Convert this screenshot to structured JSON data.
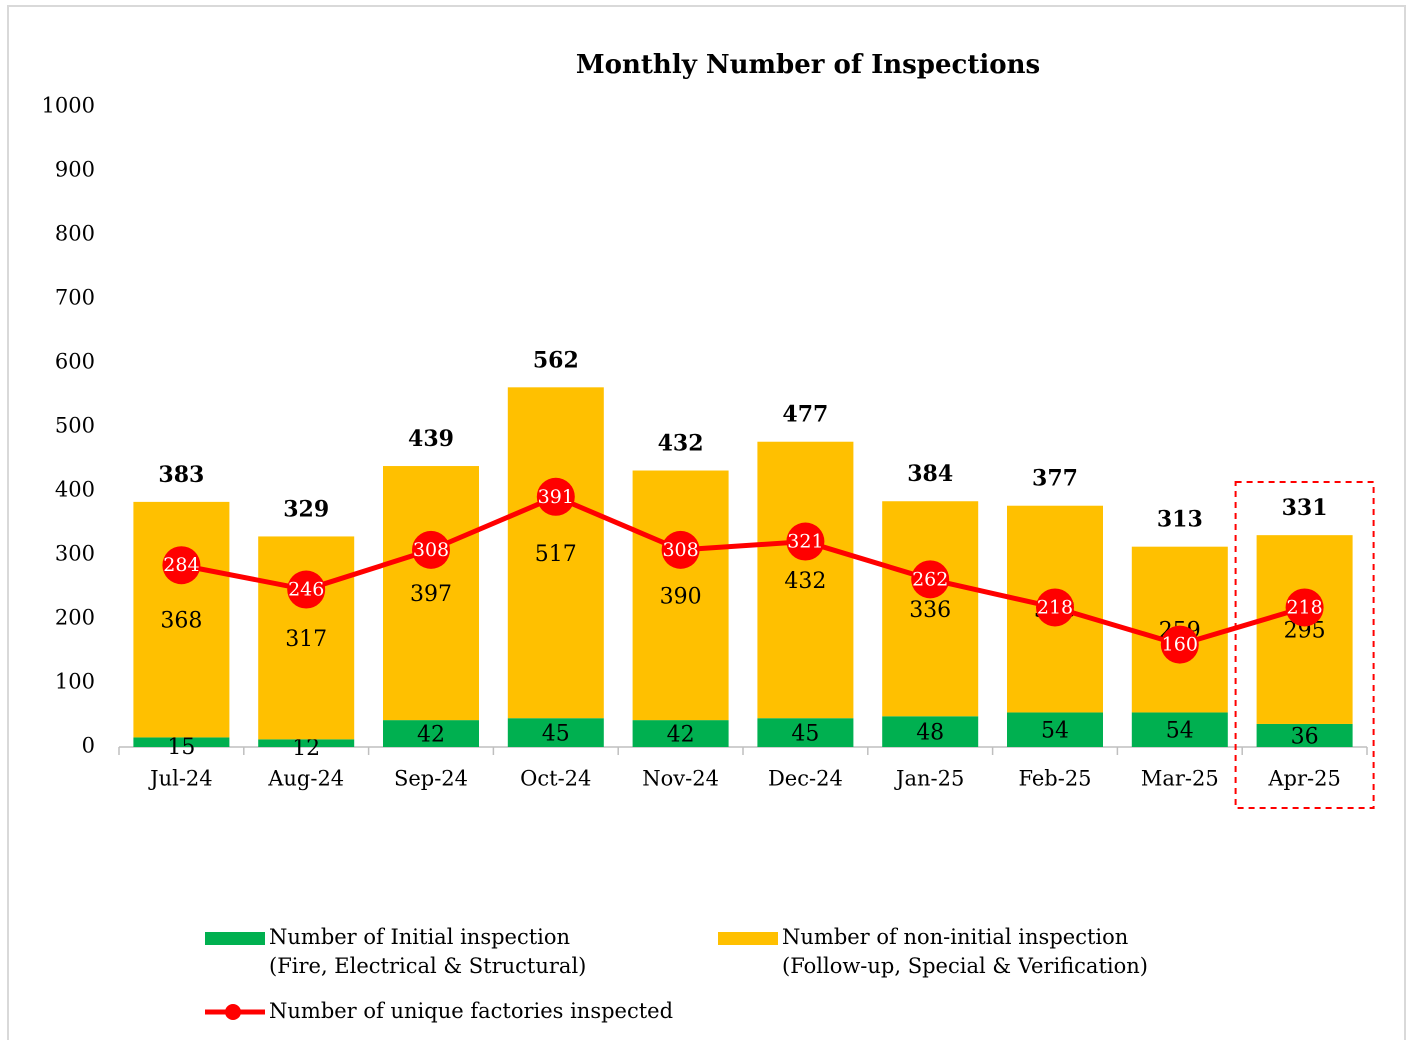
{
  "chart_data": {
    "type": "bar",
    "stacked": true,
    "title": "Monthly Number of Inspections",
    "categories": [
      "Jul-24",
      "Aug-24",
      "Sep-24",
      "Oct-24",
      "Nov-24",
      "Dec-24",
      "Jan-25",
      "Feb-25",
      "Mar-25",
      "Apr-25"
    ],
    "series": [
      {
        "name": "Number of Initial inspection\n(Fire, Electrical & Structural)",
        "color": "#00b050",
        "values": [
          15,
          12,
          42,
          45,
          42,
          45,
          48,
          54,
          54,
          36
        ]
      },
      {
        "name": "Number of non-initial inspection\n(Follow-up, Special & Verification)",
        "color": "#ffc000",
        "values": [
          368,
          317,
          397,
          517,
          390,
          432,
          336,
          323,
          259,
          295
        ]
      },
      {
        "name": "Number of unique factories inspected",
        "color": "#ff0000",
        "type": "line",
        "values": [
          284,
          246,
          308,
          391,
          308,
          321,
          262,
          218,
          160,
          218
        ]
      }
    ],
    "totals": [
      383,
      329,
      439,
      562,
      432,
      477,
      384,
      377,
      313,
      331
    ],
    "ylim": [
      0,
      1000
    ],
    "yticks": [
      0,
      100,
      200,
      300,
      400,
      500,
      600,
      700,
      800,
      900,
      1000
    ],
    "grid": false,
    "legend": "bottom"
  }
}
